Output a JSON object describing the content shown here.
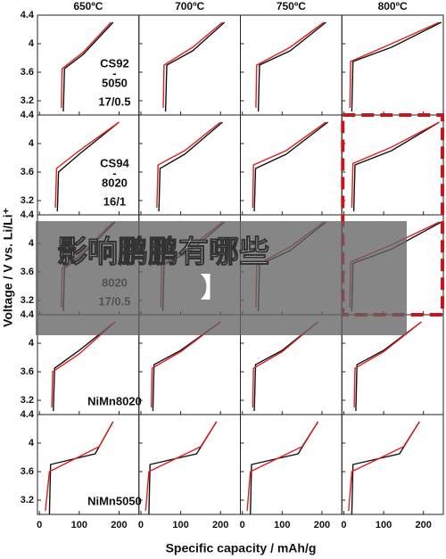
{
  "figure": {
    "column_titles": [
      "650ºC",
      "700ºC",
      "750ºC",
      "800ºC"
    ],
    "ylabel": "Voltage / V vs. Li/Li⁺",
    "xlabel": "Specific capacity / mAh/g",
    "row_labels": [
      [
        "CS92",
        "-",
        "5050",
        "17/0.5"
      ],
      [
        "CS94",
        "-",
        "8020",
        "16/1"
      ],
      [
        "8020",
        "17/0.5"
      ],
      [
        "NiMn8020"
      ],
      [
        "NiMn5050"
      ]
    ],
    "xlim": [
      -5,
      250
    ],
    "ylim": [
      3.0,
      4.4
    ],
    "xticks": [
      0,
      100,
      200
    ],
    "yticks": [
      3.2,
      3.6,
      4,
      4.4
    ],
    "overlay": [
      "影响鹏鹏有哪些",
      "】"
    ]
  },
  "chart_data": [
    {
      "type": "line",
      "series": [
        {
          "color": "#111111",
          "x": [
            60,
            63,
            110,
            185
          ],
          "values": [
            3.05,
            3.65,
            3.85,
            4.3
          ]
        },
        {
          "color": "#e0201c",
          "x": [
            180,
            110,
            57,
            55
          ],
          "values": [
            4.3,
            3.88,
            3.65,
            3.1
          ]
        }
      ]
    },
    {
      "type": "line",
      "series": [
        {
          "color": "#111111",
          "x": [
            62,
            65,
            130,
            210
          ],
          "values": [
            3.05,
            3.7,
            3.9,
            4.3
          ]
        },
        {
          "color": "#e0201c",
          "x": [
            205,
            130,
            58,
            56
          ],
          "values": [
            4.3,
            3.95,
            3.7,
            3.1
          ]
        }
      ]
    },
    {
      "type": "line",
      "series": [
        {
          "color": "#111111",
          "x": [
            40,
            43,
            120,
            210
          ],
          "values": [
            3.05,
            3.7,
            3.9,
            4.3
          ]
        },
        {
          "color": "#e0201c",
          "x": [
            205,
            120,
            36,
            34
          ],
          "values": [
            4.3,
            3.95,
            3.7,
            3.1
          ]
        }
      ]
    },
    {
      "type": "line",
      "series": [
        {
          "color": "#111111",
          "x": [
            20,
            23,
            120,
            245
          ],
          "values": [
            3.05,
            3.75,
            3.95,
            4.3
          ]
        },
        {
          "color": "#e0201c",
          "x": [
            240,
            120,
            17,
            15
          ],
          "values": [
            4.3,
            4.0,
            3.75,
            3.1
          ]
        }
      ]
    },
    {
      "type": "line",
      "series": [
        {
          "color": "#111111",
          "x": [
            45,
            48,
            100,
            200
          ],
          "values": [
            3.05,
            3.6,
            3.85,
            4.3
          ]
        },
        {
          "color": "#e0201c",
          "x": [
            200,
            100,
            43,
            40
          ],
          "values": [
            4.3,
            3.9,
            3.65,
            3.1
          ]
        }
      ]
    },
    {
      "type": "line",
      "series": [
        {
          "color": "#111111",
          "x": [
            45,
            48,
            110,
            205
          ],
          "values": [
            3.05,
            3.65,
            3.85,
            4.3
          ]
        },
        {
          "color": "#e0201c",
          "x": [
            200,
            110,
            43,
            40
          ],
          "values": [
            4.3,
            3.9,
            3.7,
            3.1
          ]
        }
      ]
    },
    {
      "type": "line",
      "series": [
        {
          "color": "#111111",
          "x": [
            30,
            33,
            110,
            215
          ],
          "values": [
            3.05,
            3.65,
            3.85,
            4.3
          ]
        },
        {
          "color": "#e0201c",
          "x": [
            210,
            110,
            28,
            26
          ],
          "values": [
            4.3,
            3.9,
            3.7,
            3.1
          ]
        }
      ]
    },
    {
      "type": "line",
      "series": [
        {
          "color": "#111111",
          "x": [
            25,
            28,
            120,
            240
          ],
          "values": [
            3.05,
            3.7,
            3.9,
            4.3
          ]
        },
        {
          "color": "#e0201c",
          "x": [
            240,
            120,
            23,
            20
          ],
          "values": [
            4.3,
            3.95,
            3.72,
            3.1
          ]
        }
      ]
    },
    {
      "type": "line",
      "series": [
        {
          "color": "#111111",
          "x": [
            60,
            63,
            110,
            190
          ],
          "values": [
            3.05,
            3.65,
            3.85,
            4.3
          ]
        },
        {
          "color": "#e0201c",
          "x": [
            185,
            110,
            57,
            55
          ],
          "values": [
            4.3,
            3.88,
            3.65,
            3.1
          ]
        }
      ]
    },
    {
      "type": "line",
      "series": [
        {
          "color": "#111111",
          "x": [
            55,
            58,
            125,
            210
          ],
          "values": [
            3.05,
            3.7,
            3.9,
            4.3
          ]
        },
        {
          "color": "#e0201c",
          "x": [
            205,
            125,
            52,
            50
          ],
          "values": [
            4.3,
            3.95,
            3.7,
            3.1
          ]
        }
      ]
    },
    {
      "type": "line",
      "series": [
        {
          "color": "#111111",
          "x": [
            40,
            43,
            120,
            210
          ],
          "values": [
            3.05,
            3.7,
            3.9,
            4.3
          ]
        },
        {
          "color": "#e0201c",
          "x": [
            205,
            120,
            36,
            34
          ],
          "values": [
            4.3,
            3.95,
            3.7,
            3.1
          ]
        }
      ]
    },
    {
      "type": "line",
      "series": [
        {
          "color": "#111111",
          "x": [
            20,
            23,
            120,
            245
          ],
          "values": [
            3.05,
            3.72,
            3.92,
            4.3
          ]
        },
        {
          "color": "#e0201c",
          "x": [
            240,
            120,
            17,
            15
          ],
          "values": [
            4.3,
            3.98,
            3.74,
            3.1
          ]
        }
      ]
    },
    {
      "type": "line",
      "series": [
        {
          "color": "#111111",
          "x": [
            35,
            38,
            100,
            190
          ],
          "values": [
            3.05,
            3.65,
            3.9,
            4.3
          ]
        },
        {
          "color": "#e0201c",
          "x": [
            190,
            100,
            33,
            31
          ],
          "values": [
            4.3,
            3.85,
            3.6,
            3.1
          ]
        }
      ]
    },
    {
      "type": "line",
      "series": [
        {
          "color": "#111111",
          "x": [
            30,
            33,
            100,
            200
          ],
          "values": [
            3.05,
            3.7,
            3.9,
            4.3
          ]
        },
        {
          "color": "#e0201c",
          "x": [
            200,
            100,
            28,
            26
          ],
          "values": [
            4.3,
            3.88,
            3.65,
            3.1
          ]
        }
      ]
    },
    {
      "type": "line",
      "series": [
        {
          "color": "#111111",
          "x": [
            30,
            33,
            100,
            190
          ],
          "values": [
            3.05,
            3.7,
            3.9,
            4.3
          ]
        },
        {
          "color": "#e0201c",
          "x": [
            190,
            100,
            28,
            26
          ],
          "values": [
            4.3,
            3.88,
            3.65,
            3.1
          ]
        }
      ]
    },
    {
      "type": "line",
      "series": [
        {
          "color": "#111111",
          "x": [
            30,
            33,
            100,
            195
          ],
          "values": [
            3.05,
            3.7,
            3.9,
            4.3
          ]
        },
        {
          "color": "#e0201c",
          "x": [
            195,
            100,
            28,
            26
          ],
          "values": [
            4.3,
            3.88,
            3.65,
            3.1
          ]
        }
      ]
    },
    {
      "type": "line",
      "series": [
        {
          "color": "#111111",
          "x": [
            25,
            28,
            140,
            185
          ],
          "values": [
            3.0,
            3.7,
            3.85,
            4.3
          ]
        },
        {
          "color": "#e0201c",
          "x": [
            185,
            150,
            25,
            15
          ],
          "values": [
            4.3,
            3.95,
            3.6,
            3.05
          ]
        }
      ]
    },
    {
      "type": "line",
      "series": [
        {
          "color": "#111111",
          "x": [
            20,
            23,
            140,
            190
          ],
          "values": [
            3.0,
            3.7,
            3.85,
            4.3
          ]
        },
        {
          "color": "#e0201c",
          "x": [
            190,
            150,
            20,
            12
          ],
          "values": [
            4.3,
            3.95,
            3.6,
            3.05
          ]
        }
      ]
    },
    {
      "type": "line",
      "series": [
        {
          "color": "#111111",
          "x": [
            20,
            23,
            140,
            190
          ],
          "values": [
            3.0,
            3.7,
            3.85,
            4.3
          ]
        },
        {
          "color": "#e0201c",
          "x": [
            190,
            150,
            20,
            12
          ],
          "values": [
            4.3,
            3.95,
            3.6,
            3.05
          ]
        }
      ]
    },
    {
      "type": "line",
      "series": [
        {
          "color": "#111111",
          "x": [
            20,
            23,
            140,
            190
          ],
          "values": [
            3.0,
            3.7,
            3.85,
            4.3
          ]
        },
        {
          "color": "#e0201c",
          "x": [
            190,
            150,
            20,
            12
          ],
          "values": [
            4.3,
            3.95,
            3.6,
            3.05
          ]
        }
      ]
    }
  ]
}
